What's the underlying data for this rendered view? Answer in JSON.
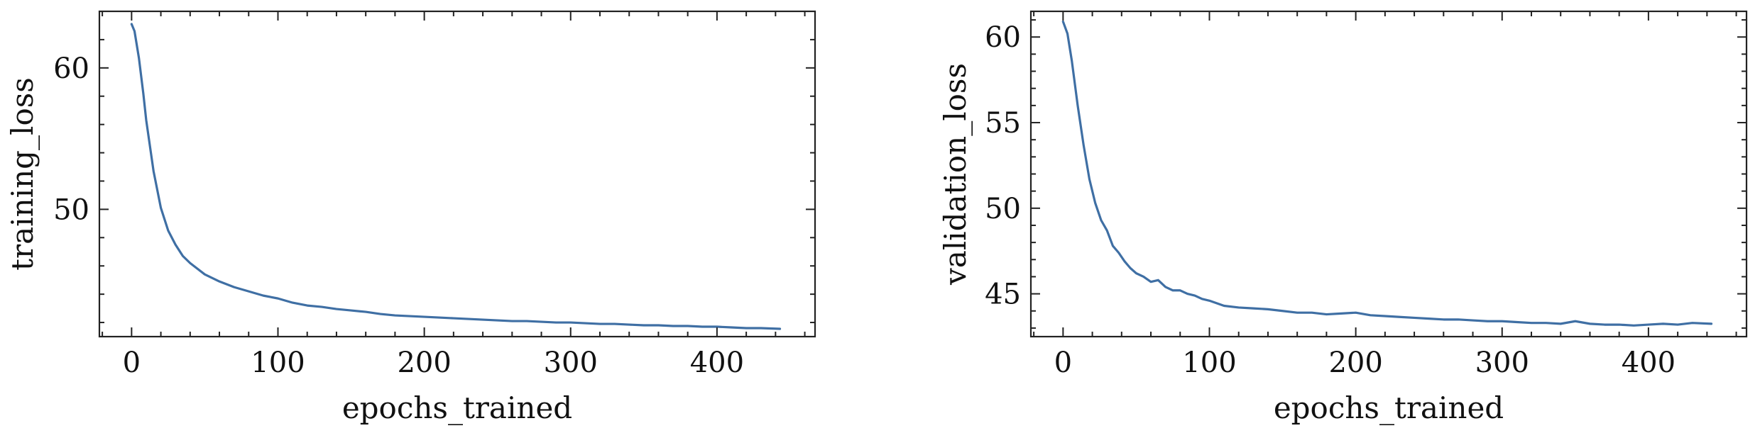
{
  "chart_data": [
    {
      "type": "line",
      "xlabel": "epochs_trained",
      "ylabel": "training_loss",
      "xlim": [
        -22,
        467
      ],
      "ylim": [
        41.0,
        64.0
      ],
      "xticks": [
        0,
        100,
        200,
        300,
        400
      ],
      "yticks": [
        50,
        60
      ],
      "y_minor_step": 2,
      "x_minor_step": 20,
      "grid": false,
      "series": [
        {
          "color": "#3f6fa4",
          "x": [
            0,
            2,
            5,
            8,
            10,
            15,
            20,
            25,
            30,
            35,
            40,
            50,
            60,
            70,
            80,
            90,
            100,
            110,
            120,
            130,
            140,
            150,
            160,
            170,
            180,
            190,
            200,
            210,
            220,
            230,
            240,
            250,
            260,
            270,
            280,
            290,
            300,
            310,
            320,
            330,
            340,
            350,
            360,
            370,
            380,
            390,
            400,
            410,
            420,
            430,
            443
          ],
          "y": [
            63.1,
            62.6,
            60.7,
            58.2,
            56.3,
            52.7,
            50.1,
            48.5,
            47.5,
            46.7,
            46.2,
            45.4,
            44.9,
            44.5,
            44.2,
            43.9,
            43.7,
            43.4,
            43.2,
            43.1,
            42.95,
            42.85,
            42.75,
            42.6,
            42.5,
            42.45,
            42.4,
            42.35,
            42.3,
            42.25,
            42.2,
            42.15,
            42.1,
            42.1,
            42.05,
            42.0,
            42.0,
            41.95,
            41.9,
            41.9,
            41.85,
            41.8,
            41.8,
            41.75,
            41.75,
            41.7,
            41.7,
            41.65,
            41.6,
            41.6,
            41.55
          ]
        }
      ]
    },
    {
      "type": "line",
      "xlabel": "epochs_trained",
      "ylabel": "validation_loss",
      "xlim": [
        -22,
        467
      ],
      "ylim": [
        42.5,
        61.5
      ],
      "xticks": [
        0,
        100,
        200,
        300,
        400
      ],
      "yticks": [
        45,
        50,
        55,
        60
      ],
      "y_minor_step": 1,
      "x_minor_step": 20,
      "grid": false,
      "series": [
        {
          "color": "#3f6fa4",
          "x": [
            0,
            3,
            6,
            10,
            14,
            18,
            22,
            26,
            30,
            34,
            38,
            42,
            46,
            50,
            55,
            60,
            65,
            70,
            75,
            80,
            85,
            90,
            95,
            100,
            110,
            120,
            130,
            140,
            150,
            160,
            170,
            180,
            190,
            200,
            210,
            220,
            230,
            240,
            250,
            260,
            270,
            280,
            290,
            300,
            310,
            320,
            330,
            340,
            350,
            360,
            370,
            380,
            390,
            400,
            410,
            420,
            430,
            443
          ],
          "y": [
            60.9,
            60.2,
            58.6,
            56.0,
            53.7,
            51.7,
            50.3,
            49.3,
            48.7,
            47.8,
            47.4,
            46.9,
            46.5,
            46.2,
            46.0,
            45.7,
            45.8,
            45.4,
            45.2,
            45.2,
            45.0,
            44.9,
            44.7,
            44.6,
            44.3,
            44.2,
            44.15,
            44.1,
            44.0,
            43.9,
            43.9,
            43.8,
            43.85,
            43.9,
            43.75,
            43.7,
            43.65,
            43.6,
            43.55,
            43.5,
            43.5,
            43.45,
            43.4,
            43.4,
            43.35,
            43.3,
            43.3,
            43.25,
            43.4,
            43.25,
            43.2,
            43.2,
            43.15,
            43.2,
            43.25,
            43.2,
            43.3,
            43.25
          ]
        }
      ]
    }
  ]
}
